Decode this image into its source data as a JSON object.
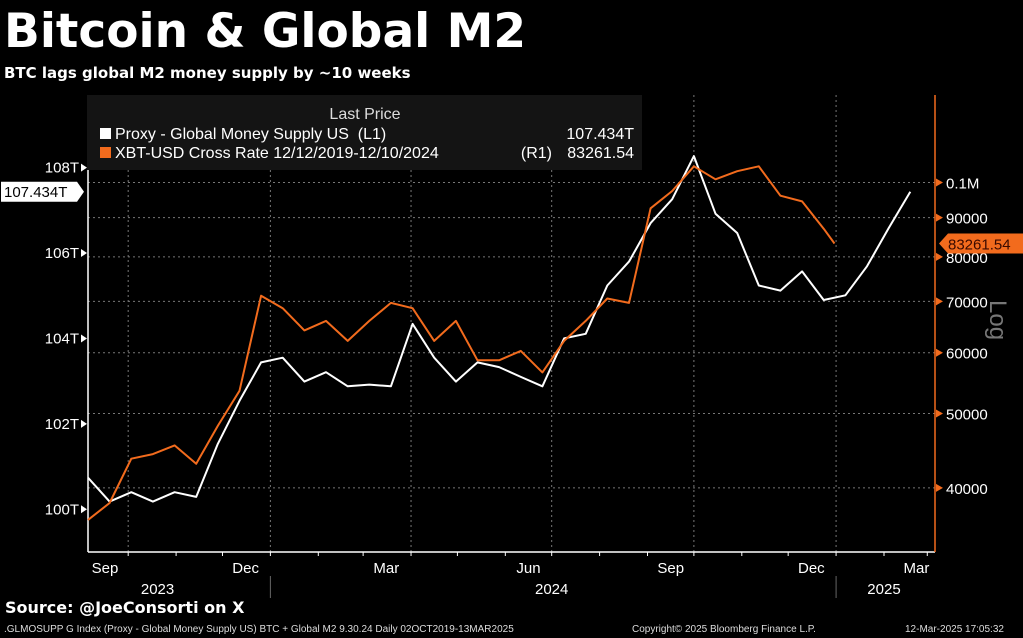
{
  "title": "Bitcoin & Global M2",
  "subtitle": "BTC lags global M2 money supply by ~10 weeks",
  "source": "Source: @JoeConsorti on X",
  "footer": {
    "description": ".GLMOSUPP G Index (Proxy - Global Money Supply US) BTC + Global M2 9.30.24  Daily 02OCT2019-13MAR2025",
    "copyright": "Copyright© 2025 Bloomberg Finance L.P.",
    "timestamp": "12-Mar-2025 17:05:32"
  },
  "chart_data": {
    "type": "line",
    "title": "Bitcoin & Global M2",
    "legend": {
      "header": "Last Price",
      "placement": "top-left",
      "entries": [
        {
          "label": "Proxy - Global Money Supply US  (L1)",
          "value": "107.434T",
          "color": "#ffffff"
        },
        {
          "label": "XBT-USD Cross Rate 12/12/2019-12/10/2024",
          "axis": "(R1)",
          "value": "83261.54",
          "color": "#f26b1d"
        }
      ]
    },
    "left_axis": {
      "ticks": [
        {
          "v": 100,
          "label": "100T"
        },
        {
          "v": 102,
          "label": "102T"
        },
        {
          "v": 104,
          "label": "104T"
        },
        {
          "v": 106,
          "label": "106T"
        },
        {
          "v": 108,
          "label": "108T"
        }
      ],
      "range": [
        99.0,
        109.7
      ],
      "last_label": "107.434T"
    },
    "right_axis": {
      "scale": "log",
      "label": "Log",
      "ticks": [
        {
          "v": 40000,
          "label": "40000"
        },
        {
          "v": 50000,
          "label": "50000"
        },
        {
          "v": 60000,
          "label": "60000"
        },
        {
          "v": 70000,
          "label": "70000"
        },
        {
          "v": 80000,
          "label": "80000"
        },
        {
          "v": 90000,
          "label": "90000"
        },
        {
          "v": 100000,
          "label": "0.1M"
        }
      ],
      "range": [
        33000,
        130000
      ],
      "last_label": "83261.54",
      "color": "#f26b1d"
    },
    "x_axis": {
      "range": [
        "2023-09-05",
        "2025-03-06"
      ],
      "month_labels": [
        {
          "d": "2023-09-16",
          "label": "Sep"
        },
        {
          "d": "2023-12-16",
          "label": "Dec"
        },
        {
          "d": "2024-03-16",
          "label": "Mar"
        },
        {
          "d": "2024-06-16",
          "label": "Jun"
        },
        {
          "d": "2024-09-16",
          "label": "Sep"
        },
        {
          "d": "2024-12-16",
          "label": "Dec"
        },
        {
          "d": "2025-02-22",
          "label": "Mar"
        }
      ],
      "grid_dates": [
        "2023-10-01",
        "2024-01-01",
        "2024-04-01",
        "2024-07-01",
        "2024-10-01",
        "2025-01-01"
      ],
      "year_labels": [
        {
          "d": "2023-10-20",
          "label": "2023"
        },
        {
          "d": "2024-07-01",
          "label": "2024"
        },
        {
          "d": "2025-02-01",
          "label": "2025"
        }
      ],
      "year_dividers": [
        "2024-01-01",
        "2025-01-01"
      ]
    },
    "grid": true,
    "series": [
      {
        "name": "Proxy - Global Money Supply US",
        "axis": "left",
        "color": "#ffffff",
        "points": [
          [
            "2023-09-05",
            100.74
          ],
          [
            "2023-09-19",
            100.18
          ],
          [
            "2023-10-03",
            100.4
          ],
          [
            "2023-10-17",
            100.18
          ],
          [
            "2023-10-31",
            100.4
          ],
          [
            "2023-11-14",
            100.29
          ],
          [
            "2023-11-28",
            101.53
          ],
          [
            "2023-12-12",
            102.54
          ],
          [
            "2023-12-26",
            103.44
          ],
          [
            "2024-01-09",
            103.55
          ],
          [
            "2024-01-23",
            102.99
          ],
          [
            "2024-02-06",
            103.21
          ],
          [
            "2024-02-20",
            102.88
          ],
          [
            "2024-03-05",
            102.92
          ],
          [
            "2024-03-19",
            102.88
          ],
          [
            "2024-04-02",
            104.34
          ],
          [
            "2024-04-16",
            103.55
          ],
          [
            "2024-04-30",
            102.99
          ],
          [
            "2024-05-14",
            103.44
          ],
          [
            "2024-05-28",
            103.33
          ],
          [
            "2024-06-11",
            103.1
          ],
          [
            "2024-06-25",
            102.88
          ],
          [
            "2024-07-09",
            104.0
          ],
          [
            "2024-07-23",
            104.11
          ],
          [
            "2024-08-06",
            105.24
          ],
          [
            "2024-08-20",
            105.8
          ],
          [
            "2024-09-03",
            106.7
          ],
          [
            "2024-09-17",
            107.26
          ],
          [
            "2024-10-01",
            108.27
          ],
          [
            "2024-10-15",
            106.92
          ],
          [
            "2024-10-29",
            106.47
          ],
          [
            "2024-11-12",
            105.24
          ],
          [
            "2024-11-26",
            105.12
          ],
          [
            "2024-12-10",
            105.57
          ],
          [
            "2024-12-24",
            104.9
          ],
          [
            "2025-01-07",
            105.01
          ],
          [
            "2025-01-21",
            105.69
          ],
          [
            "2025-02-04",
            106.58
          ],
          [
            "2025-02-18",
            107.434
          ]
        ]
      },
      {
        "name": "XBT-USD Cross Rate 12/12/2019-12/10/2024",
        "axis": "right",
        "color": "#f26b1d",
        "points": [
          [
            "2023-09-05",
            36340
          ],
          [
            "2023-09-19",
            38230
          ],
          [
            "2023-10-03",
            43660
          ],
          [
            "2023-10-17",
            44270
          ],
          [
            "2023-10-31",
            45430
          ],
          [
            "2023-11-14",
            43000
          ],
          [
            "2023-11-28",
            48180
          ],
          [
            "2023-12-12",
            53520
          ],
          [
            "2023-12-26",
            71200
          ],
          [
            "2024-01-09",
            68570
          ],
          [
            "2024-01-23",
            64160
          ],
          [
            "2024-02-06",
            66010
          ],
          [
            "2024-02-20",
            62160
          ],
          [
            "2024-03-05",
            66010
          ],
          [
            "2024-03-19",
            69680
          ],
          [
            "2024-04-02",
            68570
          ],
          [
            "2024-04-16",
            62160
          ],
          [
            "2024-04-30",
            66010
          ],
          [
            "2024-05-14",
            58660
          ],
          [
            "2024-05-28",
            58660
          ],
          [
            "2024-06-11",
            60330
          ],
          [
            "2024-06-25",
            56560
          ],
          [
            "2024-07-09",
            62160
          ],
          [
            "2024-07-23",
            66010
          ],
          [
            "2024-08-06",
            70600
          ],
          [
            "2024-08-20",
            69680
          ],
          [
            "2024-09-03",
            92540
          ],
          [
            "2024-09-17",
            97480
          ],
          [
            "2024-10-01",
            104960
          ],
          [
            "2024-10-15",
            100960
          ],
          [
            "2024-10-29",
            103430
          ],
          [
            "2024-11-12",
            104960
          ],
          [
            "2024-11-26",
            96090
          ],
          [
            "2024-12-10",
            94480
          ],
          [
            "2024-12-24",
            87050
          ],
          [
            "2024-12-31",
            83261.54
          ]
        ]
      }
    ]
  }
}
